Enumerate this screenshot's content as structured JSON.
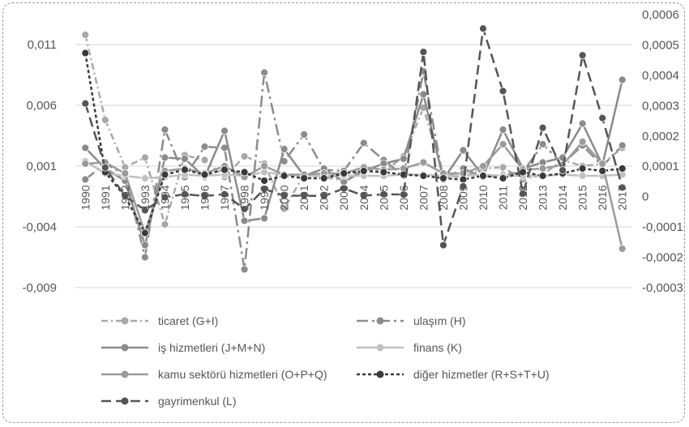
{
  "chart_data": {
    "type": "line",
    "title": "",
    "x": [
      "1990",
      "1991",
      "1992",
      "1993",
      "1994",
      "1995",
      "1996",
      "1997",
      "1998",
      "1999",
      "2000",
      "2001",
      "2002",
      "2003",
      "2004",
      "2005",
      "2006",
      "2007",
      "2008",
      "2009",
      "2010",
      "2011",
      "2012",
      "2013",
      "2014",
      "2015",
      "2016",
      "2017"
    ],
    "y_left": {
      "ylim": [
        -0.009,
        0.011
      ],
      "ticks": [
        "0,011",
        "0,006",
        "0,001",
        "-0,004",
        "-0,009"
      ],
      "tick_values": [
        0.011,
        0.006,
        0.001,
        -0.004,
        -0.009
      ]
    },
    "y_right": {
      "ylim": [
        -0.0003,
        0.0006
      ],
      "ticks": [
        "0,0006",
        "0,0005",
        "0,0004",
        "0,0003",
        "0,0002",
        "0,0001",
        "0",
        "-0,0001",
        "-0,0002",
        "-0,0003"
      ],
      "tick_values": [
        0.0006,
        0.0005,
        0.0004,
        0.0003,
        0.0002,
        0.0001,
        0,
        -0.0001,
        -0.0002,
        -0.0003
      ]
    },
    "grid": true,
    "legend_position": "bottom",
    "series": [
      {
        "name": "ticaret (G+I)",
        "axis": "left",
        "color": "#a8a8a8",
        "dash": "8,4,2,4",
        "values": [
          0.0118,
          0.0048,
          0.0009,
          0.0017,
          -0.0038,
          0.0019,
          0.0015,
          0.0001,
          0.0018,
          0.0012,
          -0.0025,
          0.0003,
          0.0001,
          -0.0002,
          0.0008,
          0.0005,
          0.0018,
          0.0058,
          0.0002,
          0.0001,
          0.0008,
          0.0009,
          -0.0001,
          0.0003,
          0.0015,
          0.001,
          0.0012,
          0.0025
        ]
      },
      {
        "name": "ulaşım (H)",
        "axis": "left",
        "color": "#8c8c8c",
        "dash": "14,5,3,5",
        "values": [
          -0.0001,
          0.0012,
          0.0003,
          -0.0065,
          0.004,
          0.0001,
          0.0026,
          0.0025,
          -0.0075,
          0.0087,
          0.0014,
          0.0036,
          0.0007,
          0.0006,
          0.0029,
          0.0015,
          0.0002,
          0.0088,
          -0.0001,
          0.0008,
          0.0001,
          0.0003,
          0.0005,
          0.0028,
          0.0012,
          0.0027,
          0.001,
          0.0027
        ]
      },
      {
        "name": "iş hizmetleri (J+M+N)",
        "axis": "left",
        "color": "#8a8a8a",
        "dash": "",
        "values": [
          0.0025,
          0.0008,
          -0.0002,
          -0.0055,
          0.0017,
          0.0016,
          0.0001,
          0.0039,
          -0.0035,
          -0.0033,
          0.0024,
          0.0002,
          0.0008,
          -0.0003,
          0.0006,
          0.0012,
          0.0016,
          0.0069,
          -0.0001,
          0.0023,
          0.0002,
          0.004,
          0.0008,
          0.0013,
          0.0017,
          0.0045,
          0.0011,
          0.0081
        ]
      },
      {
        "name": "finans (K)",
        "axis": "left",
        "color": "#c0c0c0",
        "dash": "",
        "values": [
          0.0014,
          0.0004,
          0.0002,
          0.0,
          0.0001,
          0.0003,
          0.0002,
          0.0003,
          0.0002,
          0.0005,
          0.0003,
          0.0002,
          0.0002,
          0.0002,
          0.0002,
          0.0002,
          0.0003,
          0.0003,
          0.0002,
          0.0002,
          0.0003,
          0.0002,
          0.0002,
          0.0002,
          0.0003,
          0.0002,
          0.0002,
          0.0003
        ]
      },
      {
        "name": "kamu sektörü hizmetleri (O+P+Q)",
        "axis": "left",
        "color": "#9b9b9b",
        "dash": "",
        "values": [
          0.0012,
          0.0013,
          0.0004,
          -0.0045,
          0.0006,
          0.0008,
          0.0004,
          0.001,
          0.0001,
          0.001,
          0.0003,
          0.0003,
          0.0004,
          0.0004,
          0.0009,
          0.0007,
          0.0008,
          0.0013,
          0.0004,
          0.0004,
          0.001,
          0.0028,
          0.0007,
          0.0008,
          0.0011,
          0.003,
          0.0012,
          -0.0058
        ]
      },
      {
        "name": "diğer hizmetler (R+S+T+U)",
        "axis": "left",
        "color": "#3a3a3a",
        "dash": "4,3",
        "values": [
          0.0103,
          0.0005,
          -0.0015,
          -0.0045,
          0.0003,
          0.0007,
          0.0003,
          0.0007,
          0.0005,
          -0.0002,
          0.0002,
          0.0,
          0.0,
          0.0004,
          0.0006,
          0.0005,
          0.0003,
          0.0002,
          0.0,
          -0.0001,
          0.0002,
          0.0,
          0.0005,
          0.0002,
          0.0004,
          0.0008,
          0.0006,
          0.0008
        ]
      },
      {
        "name": "gayrimenkul  (L)",
        "axis": "right",
        "color": "#555555",
        "dash": "12,6",
        "values": [
          0.000307,
          9.6e-05,
          2e-06,
          -4.5e-05,
          -2e-06,
          8e-06,
          2e-06,
          8e-06,
          -4.1e-05,
          2.5e-05,
          3e-06,
          3e-06,
          2e-06,
          2.7e-05,
          3e-06,
          8e-06,
          7e-06,
          0.000477,
          -0.00016,
          3.4e-05,
          0.000554,
          0.000348,
          1e-05,
          0.000227,
          8.7e-05,
          0.000466,
          0.000259,
          3e-05
        ]
      }
    ]
  }
}
